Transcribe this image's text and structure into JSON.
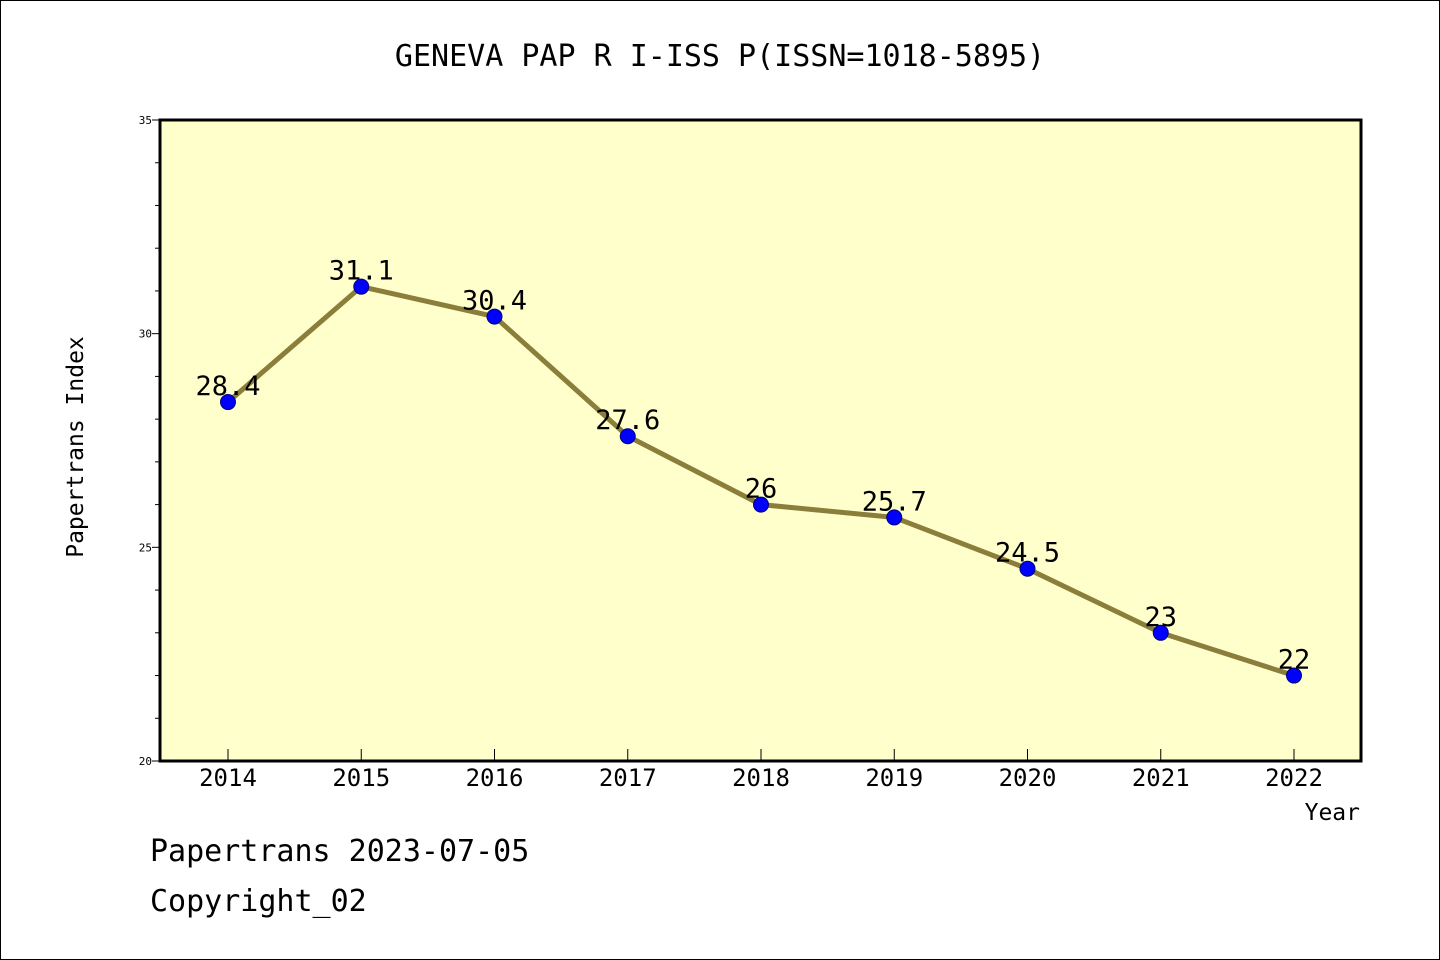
{
  "chart_data": {
    "type": "line",
    "title": "GENEVA PAP R I-ISS P(ISSN=1018-5895)",
    "xlabel": "Year",
    "ylabel": "Papertrans Index",
    "categories": [
      "2014",
      "2015",
      "2016",
      "2017",
      "2018",
      "2019",
      "2020",
      "2021",
      "2022"
    ],
    "values": [
      28.4,
      31.1,
      30.4,
      27.6,
      26,
      25.7,
      24.5,
      23,
      22
    ],
    "data_labels": [
      "28.4",
      "31.1",
      "30.4",
      "27.6",
      "26",
      "25.7",
      "24.5",
      "23",
      "22"
    ],
    "ylim": [
      20,
      35
    ],
    "y_ticks": [
      "20",
      "25",
      "30",
      "35"
    ],
    "y_minor_step": 1,
    "grid": false,
    "legend": "none",
    "colors": {
      "plot_background": "#ffffcc",
      "line": "#8b7d3a",
      "marker": "#0000ff"
    }
  },
  "footer": {
    "line1": "Papertrans 2023-07-05",
    "line2": "Copyright_02"
  }
}
